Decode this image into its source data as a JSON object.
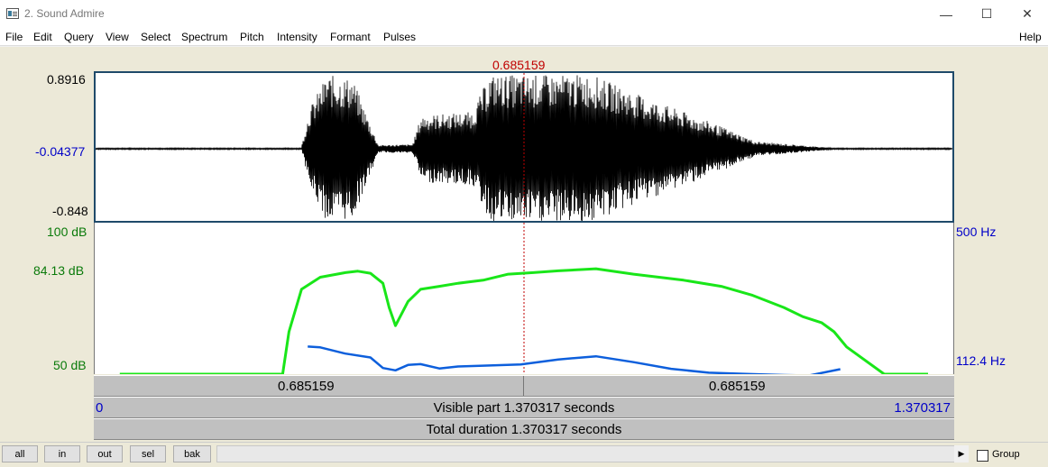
{
  "window": {
    "title": "2. Sound Admire",
    "minimize": "—",
    "maximize": "☐",
    "close": "✕"
  },
  "menu": [
    "File",
    "Edit",
    "Query",
    "View",
    "Select",
    "Spectrum",
    "Pitch",
    "Intensity",
    "Formant",
    "Pulses"
  ],
  "help": "Help",
  "cursor": {
    "time": "0.685159"
  },
  "waveform": {
    "max_label": "0.8916",
    "mid_label": "-0.04377",
    "min_label": "-0.848"
  },
  "analysis": {
    "intensity_max": "100 dB",
    "intensity_cursor": "84.13 dB",
    "intensity_min": "50 dB",
    "pitch_max": "500 Hz",
    "pitch_cursor": "112.4 Hz"
  },
  "bars": {
    "left_duration": "0.685159",
    "right_duration": "0.685159",
    "visible_start": "0",
    "visible_text": "Visible part 1.370317 seconds",
    "visible_end": "1.370317",
    "total_text": "Total duration 1.370317 seconds"
  },
  "buttons": [
    "all",
    "in",
    "out",
    "sel",
    "bak"
  ],
  "scroll_left": "◀",
  "scroll_right": "▶",
  "group_label": "Group",
  "colors": {
    "intensity": "#19e619",
    "pitch": "#0d5fdc",
    "cursor": "#c00000",
    "waveform": "#000000",
    "label_blue": "#0000c8",
    "label_green": "#0a7a0a"
  },
  "chart_data": {
    "type": "line",
    "xlim": [
      0,
      1.370317
    ],
    "series": [
      {
        "name": "intensity",
        "unit": "dB",
        "ylim": [
          50,
          100
        ],
        "x": [
          0.04,
          0.3,
          0.31,
          0.33,
          0.36,
          0.4,
          0.42,
          0.44,
          0.46,
          0.47,
          0.48,
          0.5,
          0.52,
          0.55,
          0.58,
          0.62,
          0.66,
          0.7,
          0.74,
          0.8,
          0.86,
          0.94,
          1.0,
          1.05,
          1.1,
          1.13,
          1.16,
          1.18,
          1.2,
          1.26,
          1.33
        ],
        "y": [
          50,
          50,
          64,
          78,
          82,
          83.5,
          84,
          83.3,
          80,
          72,
          66,
          74,
          78,
          79,
          80,
          81,
          83,
          83.5,
          84.1,
          84.8,
          83,
          81,
          79,
          76,
          72,
          69,
          67,
          64,
          59,
          50,
          50
        ]
      },
      {
        "name": "pitch",
        "unit": "Hz",
        "ylim": [
          112.4,
          500
        ],
        "x": [
          0.34,
          0.36,
          0.4,
          0.44,
          0.46,
          0.48,
          0.5,
          0.52,
          0.55,
          0.58,
          0.62,
          0.68,
          0.74,
          0.8,
          0.86,
          0.92,
          0.98,
          1.04,
          1.1,
          1.14,
          1.19
        ],
        "y": [
          183,
          181,
          165,
          155,
          128,
          122,
          136,
          138,
          127,
          132,
          134,
          137,
          150,
          158,
          143,
          126,
          116,
          113,
          110,
          109,
          125
        ]
      }
    ]
  }
}
